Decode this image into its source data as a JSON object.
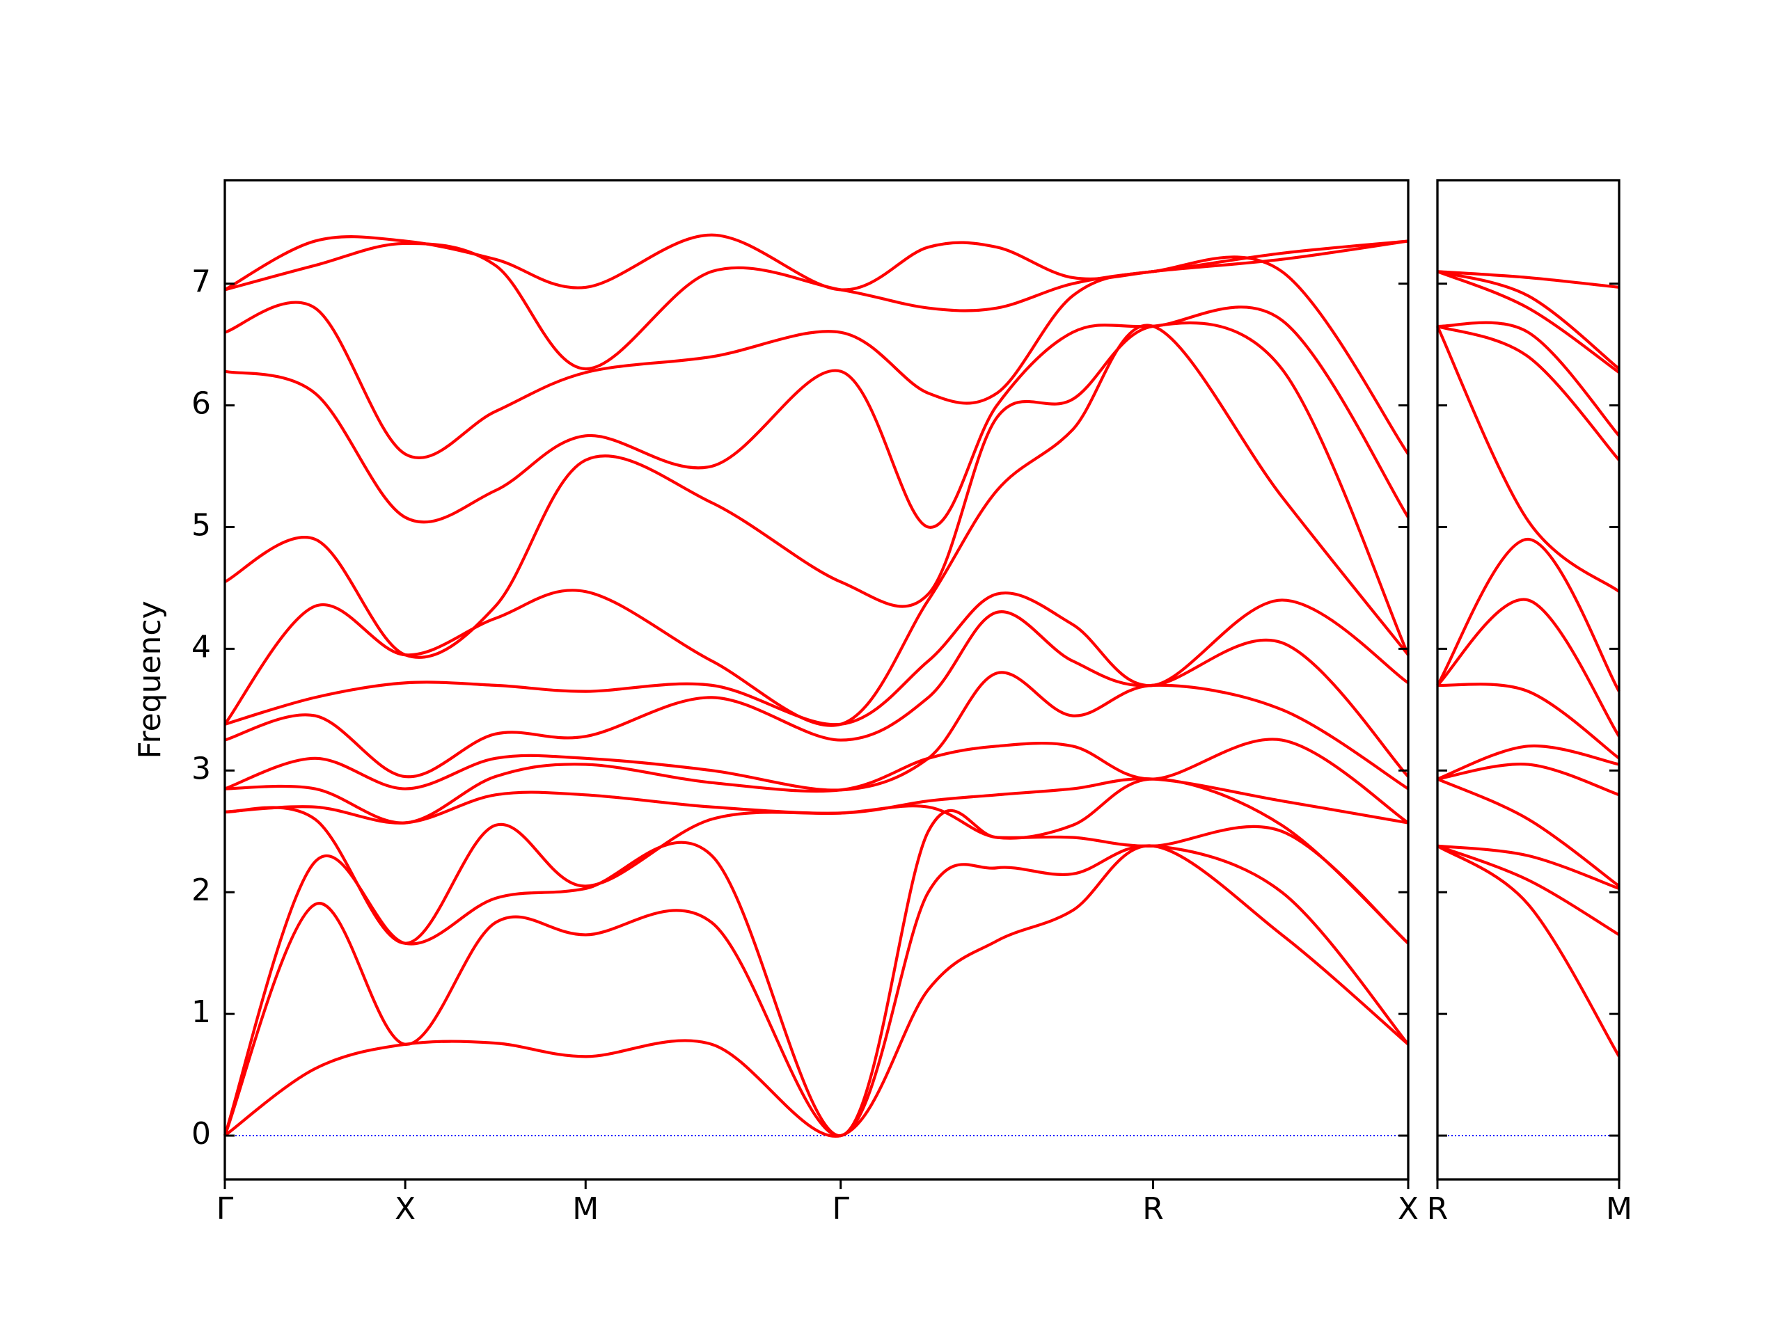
{
  "chart_data": [
    {
      "type": "line",
      "ylabel": "Frequency",
      "color": "#ff0000",
      "x": [
        0,
        0.25,
        0.5,
        0.75,
        1.0,
        1.35,
        1.7071,
        1.95,
        2.14,
        2.35,
        2.5731,
        2.93,
        3.2802
      ],
      "xlim": [
        0,
        3.2802
      ],
      "xticks": [
        {
          "value": 0,
          "label": "Γ"
        },
        {
          "value": 0.5,
          "label": "X"
        },
        {
          "value": 1.0,
          "label": "M"
        },
        {
          "value": 1.7071,
          "label": "Γ"
        },
        {
          "value": 2.5731,
          "label": "R"
        },
        {
          "value": 3.2802,
          "label": "X"
        }
      ],
      "ylim": [
        -0.36,
        7.85
      ],
      "yticks": [
        0,
        1,
        2,
        3,
        4,
        5,
        6,
        7
      ],
      "show_ytick_labels": true,
      "hline": {
        "y": 0,
        "color": "#0000ff",
        "style": "dotted"
      },
      "series": [
        {
          "values": [
            0,
            0.55,
            0.75,
            0.76,
            0.65,
            0.75,
            0,
            1.2,
            1.6,
            1.85,
            2.38,
            1.65,
            0.75
          ]
        },
        {
          "values": [
            0,
            1.9,
            0.75,
            1.75,
            1.65,
            1.75,
            0,
            2.0,
            2.2,
            2.15,
            2.38,
            2.0,
            0.75
          ]
        },
        {
          "values": [
            0,
            2.25,
            1.58,
            1.95,
            2.03,
            2.3,
            0,
            2.5,
            2.45,
            2.45,
            2.38,
            2.5,
            1.58
          ]
        },
        {
          "values": [
            2.66,
            2.6,
            1.58,
            2.55,
            2.05,
            2.6,
            2.65,
            2.7,
            2.45,
            2.55,
            2.93,
            2.55,
            1.58
          ]
        },
        {
          "values": [
            2.66,
            2.7,
            2.57,
            2.8,
            2.8,
            2.7,
            2.65,
            2.75,
            2.8,
            2.85,
            2.93,
            2.75,
            2.57
          ]
        },
        {
          "values": [
            2.85,
            2.85,
            2.57,
            2.95,
            3.05,
            2.9,
            2.84,
            3.1,
            3.2,
            3.2,
            2.93,
            3.25,
            2.57
          ]
        },
        {
          "values": [
            2.85,
            3.1,
            2.85,
            3.1,
            3.1,
            3.0,
            2.84,
            3.1,
            3.8,
            3.45,
            3.7,
            3.5,
            2.85
          ]
        },
        {
          "values": [
            3.25,
            3.45,
            2.95,
            3.3,
            3.28,
            3.6,
            3.25,
            3.6,
            4.3,
            3.9,
            3.7,
            4.05,
            2.95
          ]
        },
        {
          "values": [
            3.38,
            3.6,
            3.72,
            3.7,
            3.65,
            3.7,
            3.38,
            3.9,
            4.45,
            4.2,
            3.7,
            4.4,
            3.72
          ]
        },
        {
          "values": [
            3.38,
            4.35,
            3.95,
            4.25,
            4.47,
            3.9,
            3.38,
            4.4,
            5.3,
            5.8,
            6.65,
            5.25,
            3.95
          ]
        },
        {
          "values": [
            4.55,
            4.9,
            3.95,
            4.35,
            5.55,
            5.2,
            4.55,
            4.45,
            5.9,
            6.05,
            6.65,
            6.3,
            3.95
          ]
        },
        {
          "values": [
            6.28,
            6.1,
            5.08,
            5.3,
            5.75,
            5.5,
            6.28,
            5.0,
            6.0,
            6.6,
            6.65,
            6.7,
            5.08
          ]
        },
        {
          "values": [
            6.6,
            6.8,
            5.6,
            5.95,
            6.27,
            6.4,
            6.6,
            6.1,
            6.1,
            6.9,
            7.1,
            7.1,
            5.6
          ]
        },
        {
          "values": [
            6.95,
            7.15,
            7.33,
            7.15,
            6.3,
            7.1,
            6.95,
            6.8,
            6.8,
            7.0,
            7.1,
            7.2,
            7.35
          ]
        },
        {
          "values": [
            6.95,
            7.35,
            7.35,
            7.2,
            6.97,
            7.4,
            6.95,
            7.3,
            7.3,
            7.05,
            7.1,
            7.25,
            7.35
          ]
        }
      ]
    },
    {
      "type": "line",
      "color": "#ff0000",
      "x": [
        3.2802,
        3.53,
        3.7802
      ],
      "xlim": [
        3.2802,
        3.7802
      ],
      "xticks": [
        {
          "value": 3.2802,
          "label": "R"
        },
        {
          "value": 3.7802,
          "label": "M"
        }
      ],
      "ylim": [
        -0.36,
        7.85
      ],
      "yticks": [
        0,
        1,
        2,
        3,
        4,
        5,
        6,
        7
      ],
      "show_ytick_labels": false,
      "hline": {
        "y": 0,
        "color": "#0000ff",
        "style": "dotted"
      },
      "series": [
        {
          "values": [
            2.38,
            1.9,
            0.65
          ]
        },
        {
          "values": [
            2.38,
            2.1,
            1.65
          ]
        },
        {
          "values": [
            2.38,
            2.3,
            2.03
          ]
        },
        {
          "values": [
            2.93,
            2.6,
            2.05
          ]
        },
        {
          "values": [
            2.93,
            3.05,
            2.8
          ]
        },
        {
          "values": [
            2.93,
            3.2,
            3.05
          ]
        },
        {
          "values": [
            3.7,
            3.65,
            3.1
          ]
        },
        {
          "values": [
            3.7,
            4.4,
            3.28
          ]
        },
        {
          "values": [
            3.7,
            4.9,
            3.65
          ]
        },
        {
          "values": [
            6.65,
            5.05,
            4.47
          ]
        },
        {
          "values": [
            6.65,
            6.4,
            5.55
          ]
        },
        {
          "values": [
            6.65,
            6.6,
            5.75
          ]
        },
        {
          "values": [
            7.1,
            6.8,
            6.27
          ]
        },
        {
          "values": [
            7.1,
            6.9,
            6.3
          ]
        },
        {
          "values": [
            7.1,
            7.05,
            6.97
          ]
        }
      ]
    }
  ]
}
